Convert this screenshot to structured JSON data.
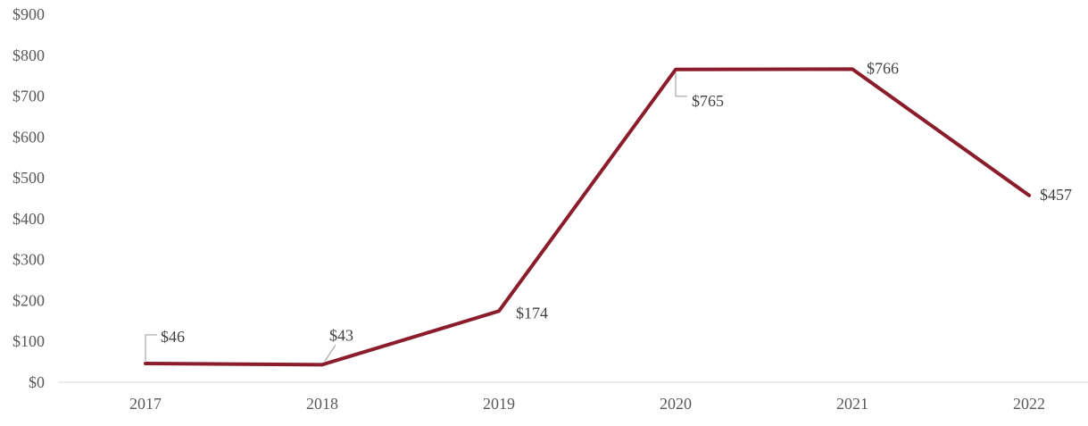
{
  "chart_data": {
    "type": "line",
    "categories": [
      "2017",
      "2018",
      "2019",
      "2020",
      "2021",
      "2022"
    ],
    "series": [
      {
        "name": "value",
        "values": [
          46,
          43,
          174,
          765,
          766,
          457
        ],
        "data_labels": [
          "$46",
          "$43",
          "$174",
          "$765",
          "$766",
          "$457"
        ]
      }
    ],
    "title": "",
    "xlabel": "",
    "ylabel": "",
    "ylim": [
      0,
      900
    ],
    "y_tick_step": 100,
    "y_tick_labels": [
      "$0",
      "$100",
      "$200",
      "$300",
      "$400",
      "$500",
      "$600",
      "$700",
      "$800",
      "$900"
    ],
    "grid": false,
    "legend": false,
    "colors": {
      "line": "#8B1C2B",
      "axis_line": "#D9D9D9",
      "tick_text": "#595959",
      "data_label_text": "#404040",
      "leader_line": "#A6A6A6",
      "background": "#FFFFFF"
    }
  }
}
